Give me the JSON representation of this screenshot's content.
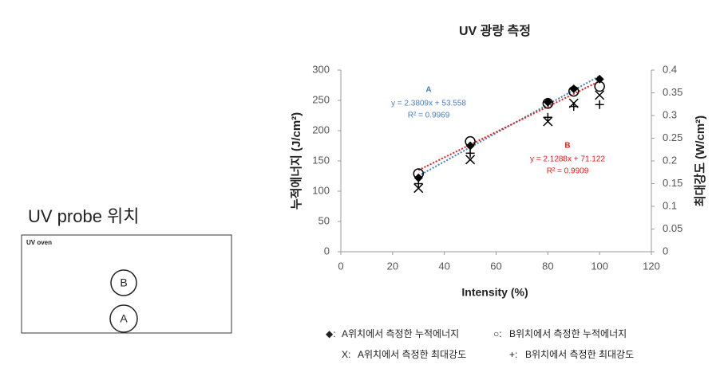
{
  "probe": {
    "title": "UV probe 위치",
    "oven_label": "UV oven",
    "points": [
      "B",
      "A"
    ]
  },
  "chart_data": {
    "type": "scatter",
    "title": "UV 광량 측정",
    "x_label": "Intensity (%)",
    "y_label": "누적에너지 (J/cm²)",
    "y2_label": "최대강도 (W/cm²)",
    "x": [
      30,
      50,
      80,
      90,
      100
    ],
    "xlim": [
      0,
      120
    ],
    "xticks": [
      0,
      20,
      40,
      60,
      80,
      100,
      120
    ],
    "ylim": [
      0,
      300
    ],
    "yticks": [
      0,
      50,
      100,
      150,
      200,
      250,
      300
    ],
    "y2lim": [
      0,
      0.4
    ],
    "y2ticks": [
      0,
      0.05,
      0.1,
      0.15,
      0.2,
      0.25,
      0.3,
      0.35,
      0.4
    ],
    "grid": false,
    "series": [
      {
        "name": "A위치에서 측정한 누적에너지",
        "legend_symbol": "◆:",
        "marker": "diamond",
        "color": "#000000",
        "values": [
          122,
          175,
          247,
          269,
          285
        ],
        "trend": {
          "color": "#4a7ebb",
          "label": "A",
          "equation": "y = 2.3809x + 53.558",
          "r2": "R² = 0.9969"
        }
      },
      {
        "name": "B위치에서 측정한 누적에너지",
        "legend_symbol": "○:",
        "marker": "circle",
        "color": "#000000",
        "values": [
          129,
          182,
          245,
          265,
          273
        ],
        "trend": {
          "color": "#e02020",
          "label": "B",
          "equation": "y = 2.1288x + 71.122",
          "r2": "R² = 0.9909"
        }
      },
      {
        "name": "A위치에서 측정한 최대강도",
        "legend_symbol": "X:",
        "marker": "x",
        "color": "#000000",
        "axis": "y2",
        "values": [
          0.14,
          0.203,
          0.287,
          0.327,
          0.345
        ]
      },
      {
        "name": "B위치에서 측정한 최대강도",
        "legend_symbol": "+:",
        "marker": "plus",
        "color": "#000000",
        "axis": "y2",
        "values": [
          0.15,
          0.217,
          0.296,
          0.32,
          0.324
        ]
      }
    ]
  }
}
